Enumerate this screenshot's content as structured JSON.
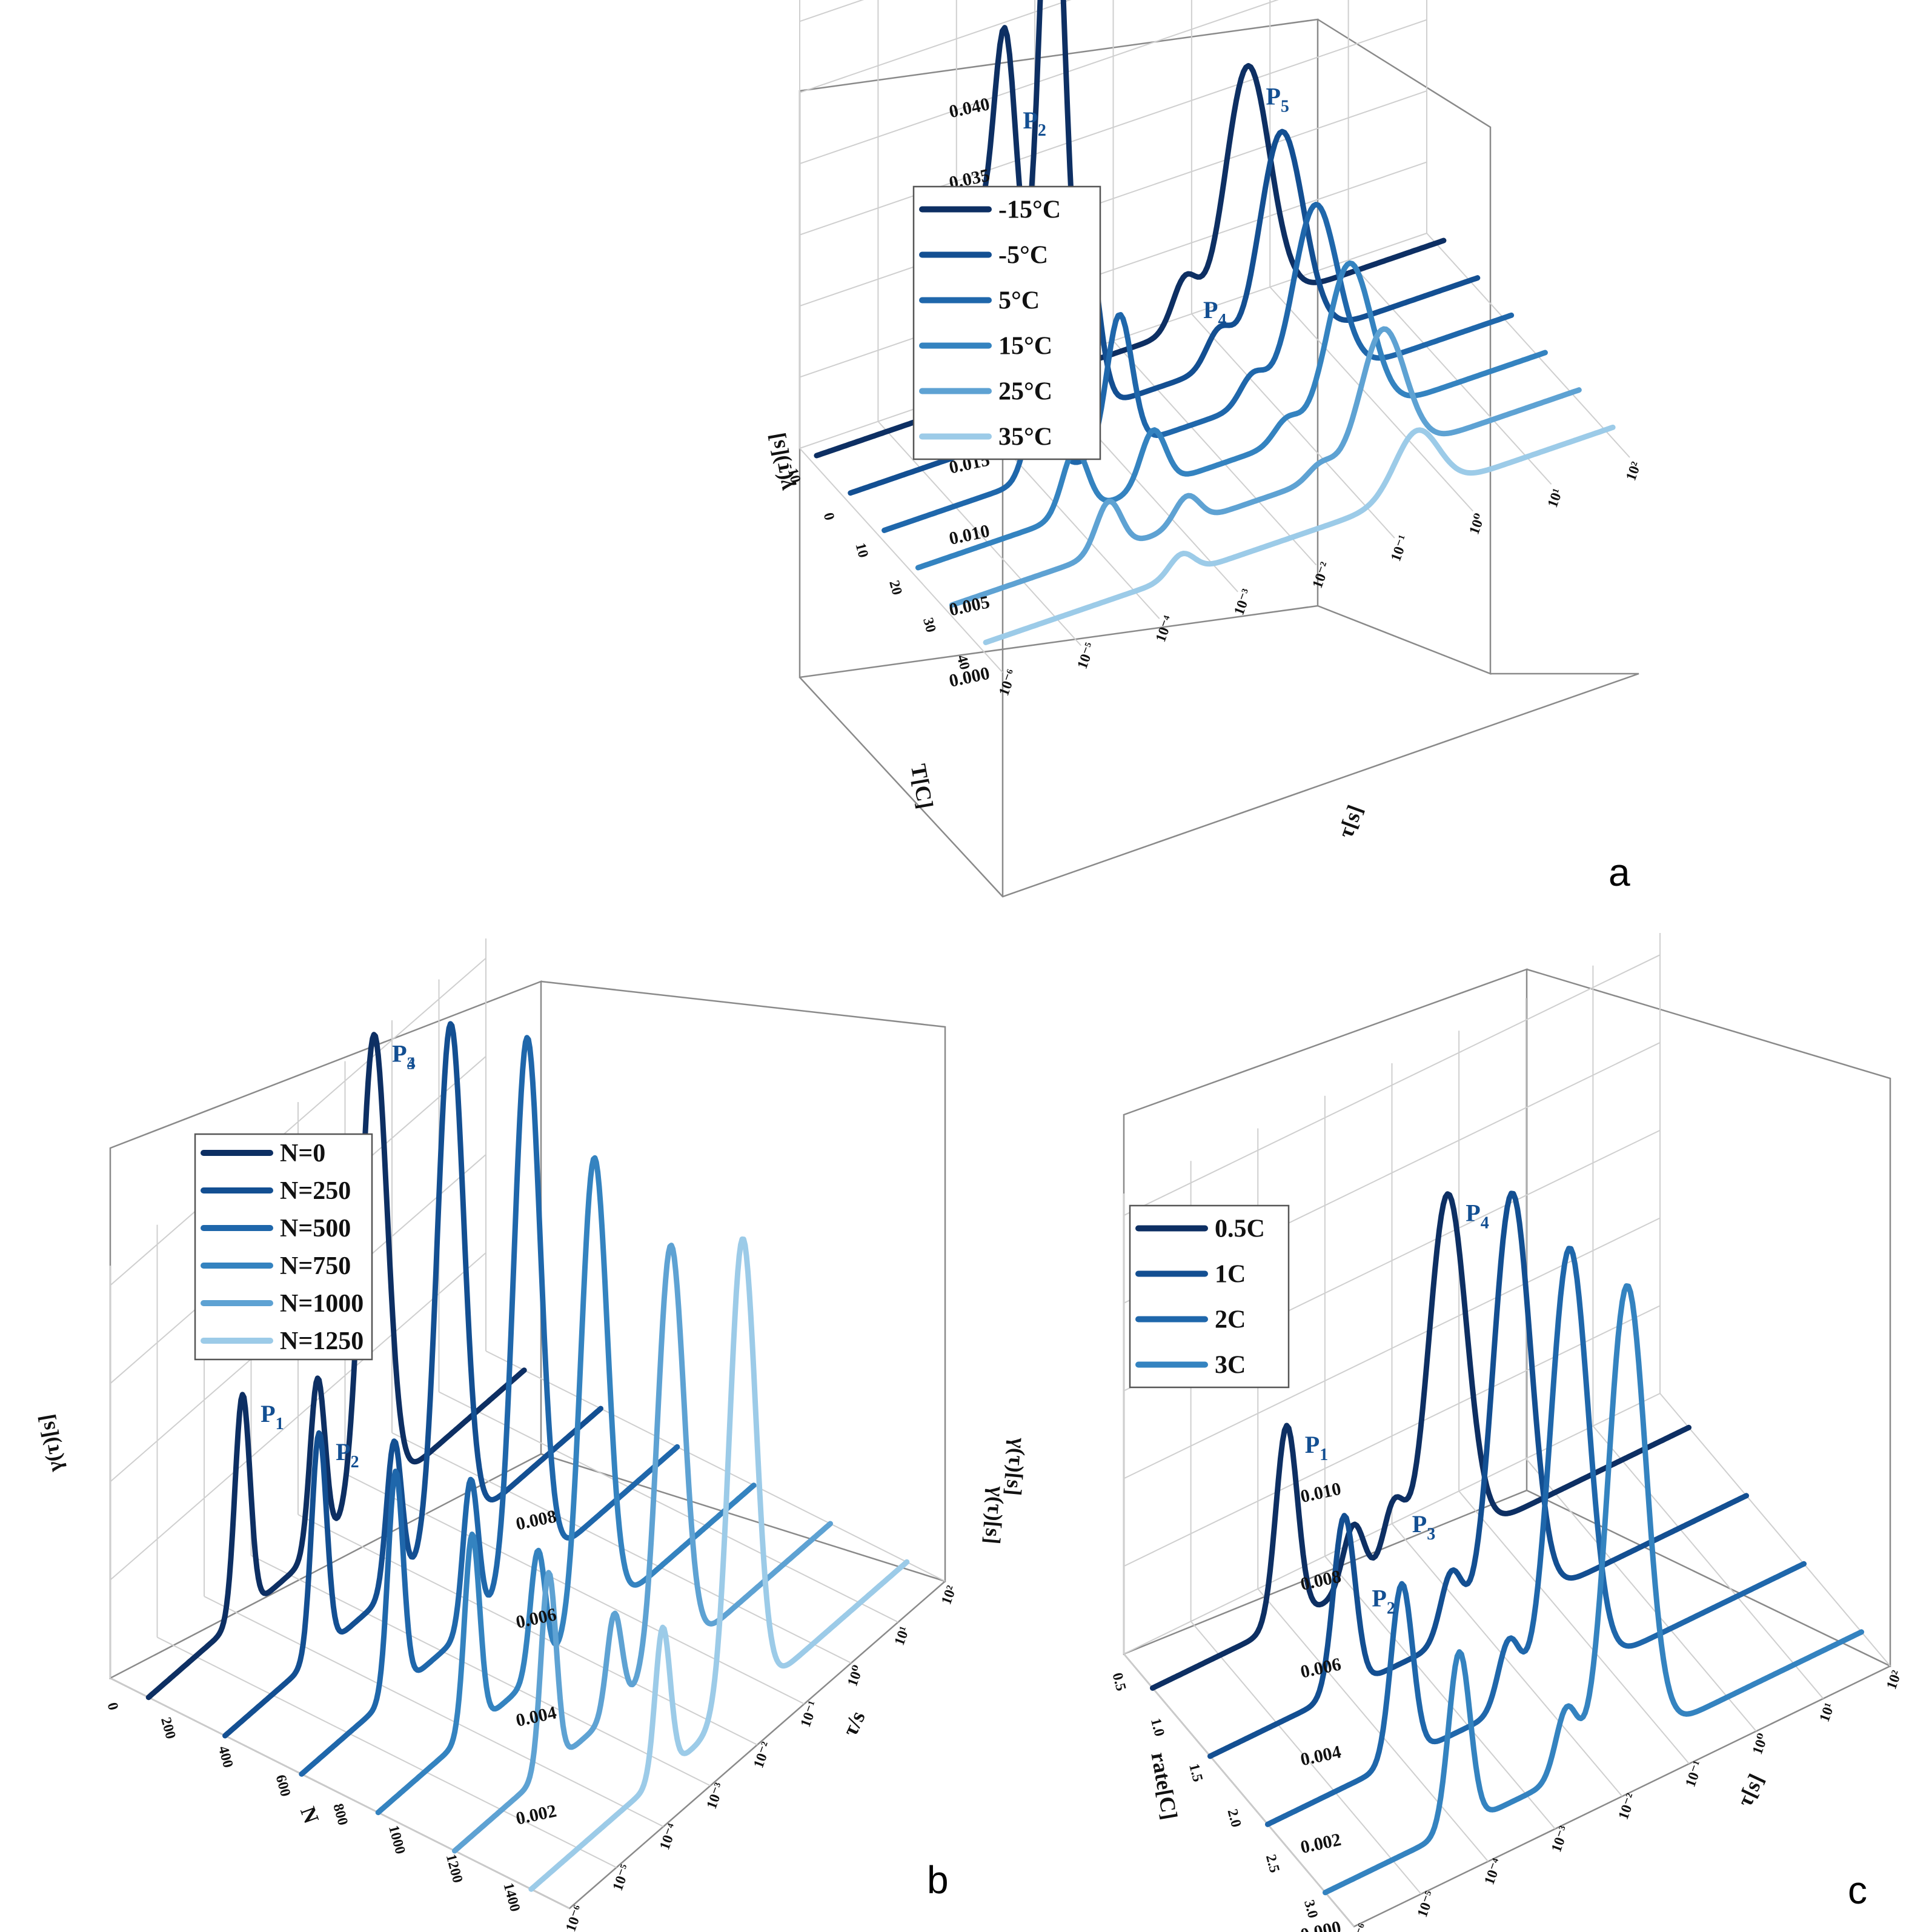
{
  "colors": [
    "#0d2f63",
    "#134f92",
    "#1f67ab",
    "#3483c0",
    "#5ea2d3",
    "#9ccbe8"
  ],
  "chart_data": [
    {
      "type": "line",
      "panel": "a",
      "ylabel": "γ(τ)[s]",
      "xlabel": "τ[s]",
      "zlabel": "T[C]",
      "x_scale": "log",
      "y_ticks": [
        "0.000",
        "0.005",
        "0.010",
        "0.015",
        "0.020",
        "0.025",
        "0.030",
        "0.035",
        "0.040"
      ],
      "x_ticks": [
        "10⁻⁶",
        "10⁻⁵",
        "10⁻⁴",
        "10⁻³",
        "10⁻²",
        "10⁻¹",
        "10⁰",
        "10¹",
        "10²"
      ],
      "z_ticks": [
        "-10",
        "0",
        "10",
        "20",
        "30",
        "40"
      ],
      "legend_position": "top-left",
      "series": [
        {
          "name": "-15°C",
          "peaks": [
            {
              "logtau": -4.0,
              "value": 0.0115
            },
            {
              "logtau": -3.6,
              "value": 0.025
            },
            {
              "logtau": -3.0,
              "value": 0.04
            },
            {
              "logtau": -1.3,
              "value": 0.0035
            },
            {
              "logtau": -0.5,
              "value": 0.017
            }
          ]
        },
        {
          "name": "-5°C",
          "peaks": [
            {
              "logtau": -4.0,
              "value": 0.0085
            },
            {
              "logtau": -3.0,
              "value": 0.0125
            },
            {
              "logtau": -1.3,
              "value": 0.0025
            },
            {
              "logtau": -0.5,
              "value": 0.015
            }
          ]
        },
        {
          "name": "5°C",
          "peaks": [
            {
              "logtau": -4.0,
              "value": 0.0065
            },
            {
              "logtau": -3.0,
              "value": 0.0095
            },
            {
              "logtau": -1.3,
              "value": 0.002
            },
            {
              "logtau": -0.5,
              "value": 0.0125
            }
          ]
        },
        {
          "name": "15°C",
          "peaks": [
            {
              "logtau": -4.0,
              "value": 0.0045
            },
            {
              "logtau": -3.0,
              "value": 0.004
            },
            {
              "logtau": -1.3,
              "value": 0.0015
            },
            {
              "logtau": -0.5,
              "value": 0.011
            }
          ]
        },
        {
          "name": "25°C",
          "peaks": [
            {
              "logtau": -4.0,
              "value": 0.0035
            },
            {
              "logtau": -3.0,
              "value": 0.002
            },
            {
              "logtau": -1.3,
              "value": 0.001
            },
            {
              "logtau": -0.5,
              "value": 0.009
            }
          ]
        },
        {
          "name": "35°C",
          "peaks": [
            {
              "logtau": -3.5,
              "value": 0.0015
            },
            {
              "logtau": -0.5,
              "value": 0.0045
            }
          ]
        }
      ],
      "peak_labels": [
        "P",
        "P",
        "P",
        "P",
        "P"
      ],
      "peak_subs": [
        "1",
        "2",
        "3",
        "4",
        "5"
      ],
      "letter": "a"
    },
    {
      "type": "line",
      "panel": "b",
      "ylabel": "γ(τ)[s]",
      "xlabel": "τ/s",
      "zlabel": "N",
      "x_scale": "log",
      "y_ticks": [
        "0.002",
        "0.004",
        "0.006",
        "0.008"
      ],
      "x_ticks": [
        "10⁻⁶",
        "10⁻⁵",
        "10⁻⁴",
        "10⁻³",
        "10⁻²",
        "10⁻¹",
        "10⁰",
        "10¹",
        "10²"
      ],
      "z_ticks": [
        "0",
        "200",
        "400",
        "600",
        "800",
        "1000",
        "1200",
        "1400"
      ],
      "legend_position": "top-left",
      "series": [
        {
          "name": "N=0",
          "peaks": [
            {
              "logtau": -4.0,
              "value": 0.0045
            },
            {
              "logtau": -2.4,
              "value": 0.0035
            },
            {
              "logtau": -1.2,
              "value": 0.0095
            }
          ]
        },
        {
          "name": "N=250",
          "peaks": [
            {
              "logtau": -4.0,
              "value": 0.0045
            },
            {
              "logtau": -2.4,
              "value": 0.003
            },
            {
              "logtau": -1.2,
              "value": 0.0105
            }
          ]
        },
        {
          "name": "N=500",
          "peaks": [
            {
              "logtau": -4.0,
              "value": 0.0045
            },
            {
              "logtau": -2.4,
              "value": 0.003
            },
            {
              "logtau": -1.2,
              "value": 0.011
            }
          ]
        },
        {
          "name": "N=750",
          "peaks": [
            {
              "logtau": -4.0,
              "value": 0.004
            },
            {
              "logtau": -2.6,
              "value": 0.0025
            },
            {
              "logtau": -1.4,
              "value": 0.0095
            }
          ]
        },
        {
          "name": "N=1000",
          "peaks": [
            {
              "logtau": -4.0,
              "value": 0.004
            },
            {
              "logtau": -2.6,
              "value": 0.002
            },
            {
              "logtau": -1.4,
              "value": 0.0085
            }
          ]
        },
        {
          "name": "N=1250",
          "peaks": [
            {
              "logtau": -3.2,
              "value": 0.003
            },
            {
              "logtau": -1.5,
              "value": 0.0095
            }
          ]
        }
      ],
      "peak_labels": [
        "P",
        "P",
        "P",
        "P"
      ],
      "peak_subs": [
        "1",
        "2",
        "3",
        "4"
      ],
      "letter": "b"
    },
    {
      "type": "line",
      "panel": "c",
      "ylabel": "γ(τ)[s]",
      "xlabel": "τ[s]",
      "zlabel": "rate[C]",
      "x_scale": "log",
      "y_ticks": [
        "0.000",
        "0.002",
        "0.004",
        "0.006",
        "0.008",
        "0.010"
      ],
      "x_ticks": [
        "10⁻⁶",
        "10⁻⁵",
        "10⁻⁴",
        "10⁻³",
        "10⁻²",
        "10⁻¹",
        "10⁰",
        "10¹",
        "10²"
      ],
      "z_ticks": [
        "0.5",
        "1.0",
        "1.5",
        "2.0",
        "2.5",
        "3.0"
      ],
      "legend_position": "top-left",
      "series": [
        {
          "name": "0.5C",
          "peaks": [
            {
              "logtau": -4.0,
              "value": 0.0045
            },
            {
              "logtau": -3.0,
              "value": 0.0015
            },
            {
              "logtau": -2.4,
              "value": 0.0015
            },
            {
              "logtau": -1.6,
              "value": 0.008
            }
          ]
        },
        {
          "name": "1C",
          "peaks": [
            {
              "logtau": -4.0,
              "value": 0.004
            },
            {
              "logtau": -2.4,
              "value": 0.0015
            },
            {
              "logtau": -1.5,
              "value": 0.0095
            }
          ]
        },
        {
          "name": "2C",
          "peaks": [
            {
              "logtau": -4.0,
              "value": 0.004
            },
            {
              "logtau": -2.4,
              "value": 0.0015
            },
            {
              "logtau": -1.5,
              "value": 0.0098
            }
          ]
        },
        {
          "name": "3C",
          "peaks": [
            {
              "logtau": -4.0,
              "value": 0.004
            },
            {
              "logtau": -2.4,
              "value": 0.0015
            },
            {
              "logtau": -1.5,
              "value": 0.0105
            }
          ]
        }
      ],
      "peak_labels": [
        "P",
        "P",
        "P",
        "P"
      ],
      "peak_subs": [
        "1",
        "2",
        "3",
        "4"
      ],
      "letter": "c"
    }
  ]
}
